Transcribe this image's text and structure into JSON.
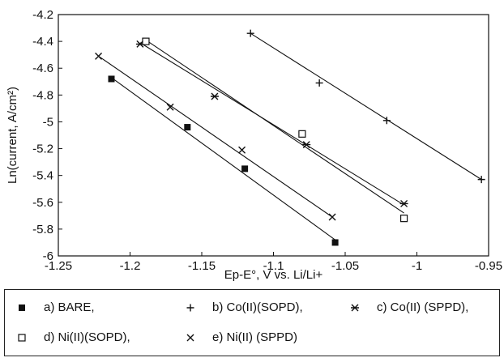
{
  "chart_data": {
    "type": "scatter",
    "title": "",
    "xlabel": "Ep-E°, V vs. Li/Li+",
    "ylabel": "Ln(current, A/cm²)",
    "xlim": [
      -1.25,
      -0.95
    ],
    "ylim": [
      -6,
      -4.2
    ],
    "xticks": [
      "-1.25",
      "-1.2",
      "-1.15",
      "-1.1",
      "-1.05",
      "-1",
      "-0.95"
    ],
    "yticks": [
      "-4.2",
      "-4.4",
      "-4.6",
      "-4.8",
      "-5",
      "-5.2",
      "-5.4",
      "-5.6",
      "-5.8",
      "-6"
    ],
    "grid": false,
    "legend_position": "bottom",
    "series": [
      {
        "name": "a) BARE,",
        "marker": "filled-square",
        "x": [
          -1.213,
          -1.16,
          -1.12,
          -1.057
        ],
        "y": [
          -4.68,
          -5.04,
          -5.35,
          -5.9
        ],
        "fit": [
          [
            -1.213,
            -4.67
          ],
          [
            -1.057,
            -5.88
          ]
        ]
      },
      {
        "name": "b) Co(II)(SOPD),",
        "marker": "plus",
        "x": [
          -1.116,
          -1.068,
          -1.021,
          -0.955
        ],
        "y": [
          -4.34,
          -4.71,
          -4.99,
          -5.43
        ],
        "fit": [
          [
            -1.116,
            -4.34
          ],
          [
            -0.955,
            -5.43
          ]
        ]
      },
      {
        "name": "c) Co(II) (SPPD),",
        "marker": "star",
        "x": [
          -1.193,
          -1.141,
          -1.077,
          -1.009
        ],
        "y": [
          -4.42,
          -4.81,
          -5.17,
          -5.61
        ],
        "fit": [
          [
            -1.193,
            -4.41
          ],
          [
            -1.009,
            -5.62
          ]
        ]
      },
      {
        "name": "d) Ni(II)(SOPD),",
        "marker": "open-square",
        "x": [
          -1.189,
          -1.08,
          -1.009
        ],
        "y": [
          -4.4,
          -5.09,
          -5.72
        ],
        "fit": [
          [
            -1.189,
            -4.39
          ],
          [
            -1.009,
            -5.68
          ]
        ]
      },
      {
        "name": "e) Ni(II) (SPPD)",
        "marker": "cross",
        "x": [
          -1.222,
          -1.172,
          -1.122,
          -1.059
        ],
        "y": [
          -4.51,
          -4.89,
          -5.21,
          -5.71
        ],
        "fit": [
          [
            -1.222,
            -4.51
          ],
          [
            -1.059,
            -5.71
          ]
        ]
      }
    ]
  }
}
